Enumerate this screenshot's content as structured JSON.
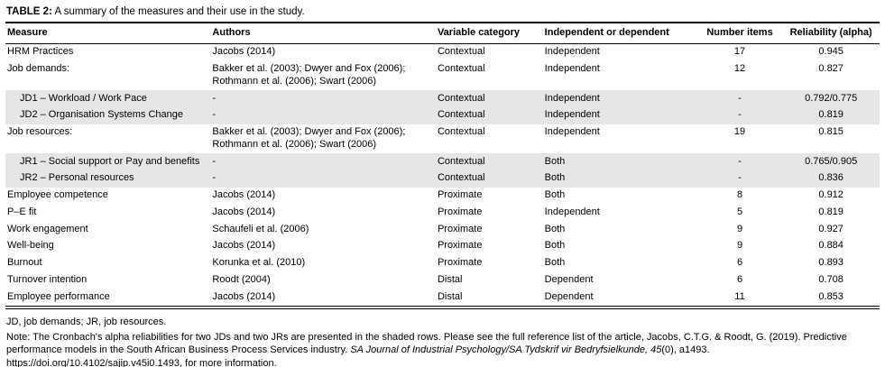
{
  "table": {
    "caption_label": "TABLE 2:",
    "caption_text": " A summary of the measures and their use in the study.",
    "columns": [
      {
        "key": "measure",
        "label": "Measure"
      },
      {
        "key": "authors",
        "label": "Authors"
      },
      {
        "key": "variable-category",
        "label": "Variable category"
      },
      {
        "key": "independent-or-dependent",
        "label": "Independent or dependent"
      },
      {
        "key": "number-items",
        "label": "Number items"
      },
      {
        "key": "reliability-alpha",
        "label": "Reliability (alpha)"
      }
    ],
    "rows": [
      {
        "measure": "HRM Practices",
        "authors": "Jacobs (2014)",
        "category": "Contextual",
        "ind_dep": "Independent",
        "items": "17",
        "alpha": "0.945",
        "shaded": false,
        "indent": false
      },
      {
        "measure": "Job demands:",
        "authors": "Bakker et al. (2003); Dwyer and Fox (2006); Rothmann et al. (2006); Swart (2006)",
        "category": "Contextual",
        "ind_dep": "Independent",
        "items": "12",
        "alpha": "0.827",
        "shaded": false,
        "indent": false
      },
      {
        "measure": "JD1 – Workload / Work Pace",
        "authors": "-",
        "category": "Contextual",
        "ind_dep": "Independent",
        "items": "-",
        "alpha": "0.792/0.775",
        "shaded": true,
        "indent": true
      },
      {
        "measure": "JD2 – Organisation Systems Change",
        "authors": "-",
        "category": "Contextual",
        "ind_dep": "Independent",
        "items": "-",
        "alpha": "0.819",
        "shaded": true,
        "indent": true
      },
      {
        "measure": "Job resources:",
        "authors": "Bakker et al. (2003); Dwyer and Fox (2006); Rothmann et al. (2006); Swart (2006)",
        "category": "Contextual",
        "ind_dep": "Independent",
        "items": "19",
        "alpha": "0.815",
        "shaded": false,
        "indent": false
      },
      {
        "measure": "JR1 – Social support or Pay and benefits",
        "authors": "-",
        "category": "Contextual",
        "ind_dep": "Both",
        "items": "-",
        "alpha": "0.765/0.905",
        "shaded": true,
        "indent": true
      },
      {
        "measure": "JR2 – Personal resources",
        "authors": "-",
        "category": "Contextual",
        "ind_dep": "Both",
        "items": "-",
        "alpha": "0.836",
        "shaded": true,
        "indent": true
      },
      {
        "measure": "Employee competence",
        "authors": "Jacobs (2014)",
        "category": "Proximate",
        "ind_dep": "Both",
        "items": "8",
        "alpha": "0.912",
        "shaded": false,
        "indent": false
      },
      {
        "measure": "P–E fit",
        "authors": "Jacobs (2014)",
        "category": "Proximate",
        "ind_dep": "Independent",
        "items": "5",
        "alpha": "0.819",
        "shaded": false,
        "indent": false
      },
      {
        "measure": "Work engagement",
        "authors": "Schaufeli et al. (2006)",
        "category": "Proximate",
        "ind_dep": "Both",
        "items": "9",
        "alpha": "0.927",
        "shaded": false,
        "indent": false
      },
      {
        "measure": "Well-being",
        "authors": "Jacobs (2014)",
        "category": "Proximate",
        "ind_dep": "Both",
        "items": "9",
        "alpha": "0.884",
        "shaded": false,
        "indent": false
      },
      {
        "measure": "Burnout",
        "authors": "Korunka et al. (2010)",
        "category": "Proximate",
        "ind_dep": "Both",
        "items": "6",
        "alpha": "0.893",
        "shaded": false,
        "indent": false
      },
      {
        "measure": "Turnover intention",
        "authors": "Roodt (2004)",
        "category": "Distal",
        "ind_dep": "Dependent",
        "items": "6",
        "alpha": "0.708",
        "shaded": false,
        "indent": false
      },
      {
        "measure": "Employee performance",
        "authors": "Jacobs (2014)",
        "category": "Distal",
        "ind_dep": "Dependent",
        "items": "11",
        "alpha": "0.853",
        "shaded": false,
        "indent": false
      }
    ]
  },
  "footnotes": {
    "abbrev": "JD, job demands; JR, job resources.",
    "note_part1": "Note: The Cronbach's alpha reliabilities for two JDs and two JRs are presented in the shaded rows. Please see the full reference list of the article, Jacobs, C.T.G. & Roodt, G. (2019). Predictive performance models in the South African Business Process Services industry. ",
    "note_part2": "SA Journal of Industrial Psychology/SA Tydskrif vir Bedryfsielkunde, 45",
    "note_part3": "(0), a1493. https://doi.org/10.4102/sajip.v45i0.1493, for more information."
  }
}
